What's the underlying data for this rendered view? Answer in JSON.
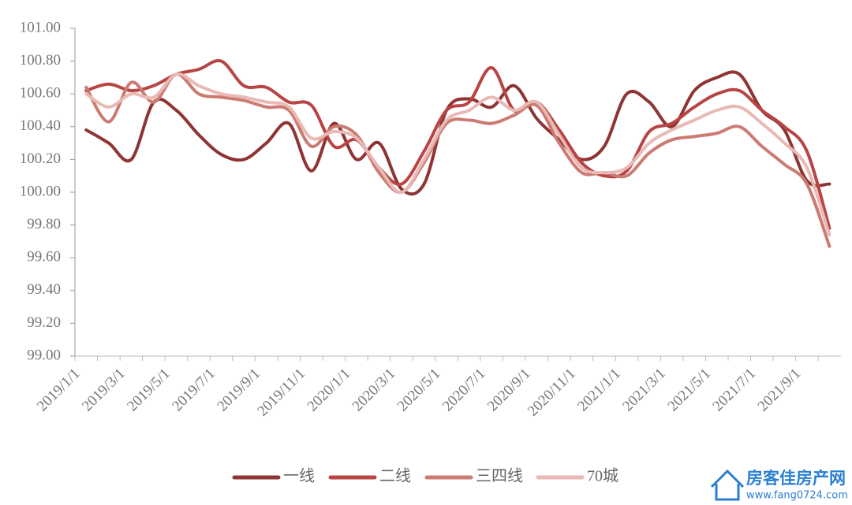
{
  "chart_data": {
    "type": "line",
    "categories": [
      "2019/1/1",
      null,
      "2019/3/1",
      null,
      "2019/5/1",
      null,
      "2019/7/1",
      null,
      "2019/9/1",
      null,
      "2019/11/1",
      null,
      "2020/1/1",
      null,
      "2020/3/1",
      null,
      "2020/5/1",
      null,
      "2020/7/1",
      null,
      "2020/9/1",
      null,
      "2020/11/1",
      null,
      "2021/1/1",
      null,
      "2021/3/1",
      null,
      "2021/5/1",
      null,
      "2021/7/1",
      null,
      "2021/9/1",
      null
    ],
    "series": [
      {
        "name": "一线",
        "color": "#8e3434",
        "values": [
          100.38,
          100.3,
          100.2,
          100.55,
          100.5,
          100.35,
          100.23,
          100.2,
          100.3,
          100.42,
          100.13,
          100.42,
          100.2,
          100.3,
          100.02,
          100.05,
          100.5,
          100.57,
          100.52,
          100.65,
          100.45,
          100.32,
          100.2,
          100.28,
          100.6,
          100.55,
          100.4,
          100.62,
          100.7,
          100.72,
          100.5,
          100.38,
          100.07,
          100.05
        ]
      },
      {
        "name": "二线",
        "color": "#b84444",
        "values": [
          100.62,
          100.66,
          100.62,
          100.65,
          100.72,
          100.75,
          100.8,
          100.65,
          100.64,
          100.55,
          100.53,
          100.28,
          100.32,
          100.15,
          100.05,
          100.25,
          100.5,
          100.55,
          100.76,
          100.5,
          100.55,
          100.38,
          100.18,
          100.1,
          100.13,
          100.37,
          100.42,
          100.52,
          100.6,
          100.62,
          100.5,
          100.4,
          100.25,
          99.78
        ]
      },
      {
        "name": "三四线",
        "color": "#cc7b73",
        "values": [
          100.64,
          100.43,
          100.67,
          100.55,
          100.72,
          100.6,
          100.58,
          100.56,
          100.52,
          100.5,
          100.28,
          100.4,
          100.35,
          100.12,
          100.0,
          100.18,
          100.42,
          100.44,
          100.42,
          100.47,
          100.53,
          100.3,
          100.12,
          100.12,
          100.1,
          100.24,
          100.32,
          100.34,
          100.36,
          100.4,
          100.28,
          100.17,
          100.05,
          99.67
        ]
      },
      {
        "name": "70城",
        "color": "#e9b9b5",
        "values": [
          100.6,
          100.52,
          100.6,
          100.58,
          100.72,
          100.65,
          100.6,
          100.58,
          100.55,
          100.52,
          100.33,
          100.37,
          100.33,
          100.15,
          100.0,
          100.2,
          100.44,
          100.5,
          100.58,
          100.5,
          100.55,
          100.35,
          100.15,
          100.12,
          100.15,
          100.3,
          100.38,
          100.44,
          100.5,
          100.52,
          100.42,
          100.3,
          100.15,
          99.74
        ]
      }
    ],
    "ylim": [
      99,
      101
    ],
    "yticks": [
      {
        "value": 99,
        "label": "99.00"
      },
      {
        "value": 99.2,
        "label": "99.20"
      },
      {
        "value": 99.4,
        "label": "99.40"
      },
      {
        "value": 99.6,
        "label": "99.60"
      },
      {
        "value": 99.8,
        "label": "99.80"
      },
      {
        "value": 100,
        "label": "100.00"
      },
      {
        "value": 100.2,
        "label": "100.20"
      },
      {
        "value": 100.4,
        "label": "100.40"
      },
      {
        "value": 100.6,
        "label": "100.60"
      },
      {
        "value": 100.8,
        "label": "100.80"
      },
      {
        "value": 101,
        "label": "101.00"
      }
    ],
    "legend": "bottom"
  },
  "watermark": {
    "title": "房客佳房产网",
    "url": "www.fang0724.com"
  }
}
